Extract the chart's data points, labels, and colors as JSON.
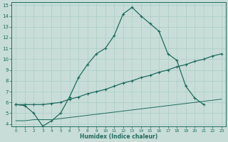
{
  "xlabel": "Humidex (Indice chaleur)",
  "background_color": "#c8ddd8",
  "grid_color": "#aaccc6",
  "line_color": "#1e6b5e",
  "xlim": [
    -0.5,
    23.5
  ],
  "ylim": [
    3.8,
    15.3
  ],
  "xticks": [
    0,
    1,
    2,
    3,
    4,
    5,
    6,
    7,
    8,
    9,
    10,
    11,
    12,
    13,
    14,
    15,
    16,
    17,
    18,
    19,
    20,
    21,
    22,
    23
  ],
  "yticks": [
    4,
    5,
    6,
    7,
    8,
    9,
    10,
    11,
    12,
    13,
    14,
    15
  ],
  "line1_x": [
    0,
    1,
    2,
    3,
    4,
    5,
    6,
    7,
    8,
    9,
    10,
    11,
    12,
    13,
    14,
    15,
    16,
    17,
    18,
    19,
    20,
    21
  ],
  "line1_y": [
    5.8,
    5.7,
    5.0,
    3.8,
    4.3,
    5.0,
    6.5,
    8.3,
    9.5,
    10.5,
    11.0,
    12.2,
    14.2,
    14.8,
    14.0,
    13.3,
    12.6,
    10.5,
    9.9,
    7.5,
    6.4,
    5.8
  ],
  "line2_x": [
    0,
    1,
    2,
    3,
    4,
    5,
    6,
    7,
    8,
    9,
    10,
    11,
    12,
    13,
    14,
    15,
    16,
    17,
    18,
    19,
    20,
    21,
    22,
    23
  ],
  "line2_y": [
    5.8,
    5.8,
    5.8,
    5.8,
    5.9,
    6.0,
    6.3,
    6.5,
    6.8,
    7.0,
    7.2,
    7.5,
    7.8,
    8.0,
    8.3,
    8.5,
    8.8,
    9.0,
    9.3,
    9.5,
    9.8,
    10.0,
    10.3,
    10.5
  ],
  "line3_x": [
    0,
    1,
    2,
    3,
    4,
    5,
    6,
    7,
    8,
    9,
    10,
    11,
    12,
    13,
    14,
    15,
    16,
    17,
    18,
    19,
    20,
    21,
    22,
    23
  ],
  "line3_y": [
    4.3,
    4.3,
    4.4,
    4.4,
    4.4,
    4.5,
    4.6,
    4.7,
    4.8,
    4.9,
    5.0,
    5.1,
    5.2,
    5.3,
    5.4,
    5.5,
    5.6,
    5.7,
    5.8,
    5.9,
    6.0,
    6.1,
    6.2,
    6.3
  ]
}
